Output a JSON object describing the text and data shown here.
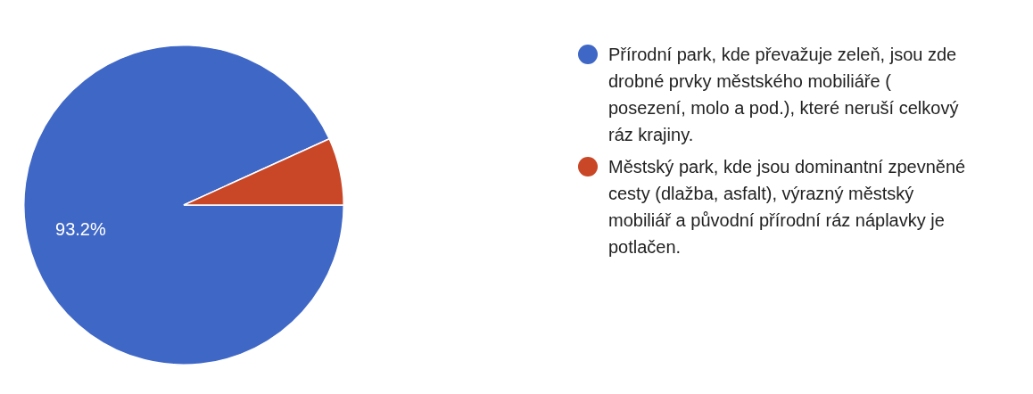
{
  "chart_data": {
    "type": "pie",
    "categories": [
      "Přírodní park, kde převažuje zeleň, jsou zde drobné prvky městského mobiliáře ( posezení, molo a pod.), které neruší celkový ráz krajiny.",
      "Městský park, kde jsou dominantní zpevněné cesty (dlažba, asfalt), výrazný městský mobiliář a původní přírodní ráz náplavky je potlačen."
    ],
    "values": [
      93.2,
      6.8
    ],
    "colors": [
      "#3f67c6",
      "#c94626"
    ],
    "value_labels": [
      "93.2%",
      null
    ],
    "legend": "right"
  }
}
